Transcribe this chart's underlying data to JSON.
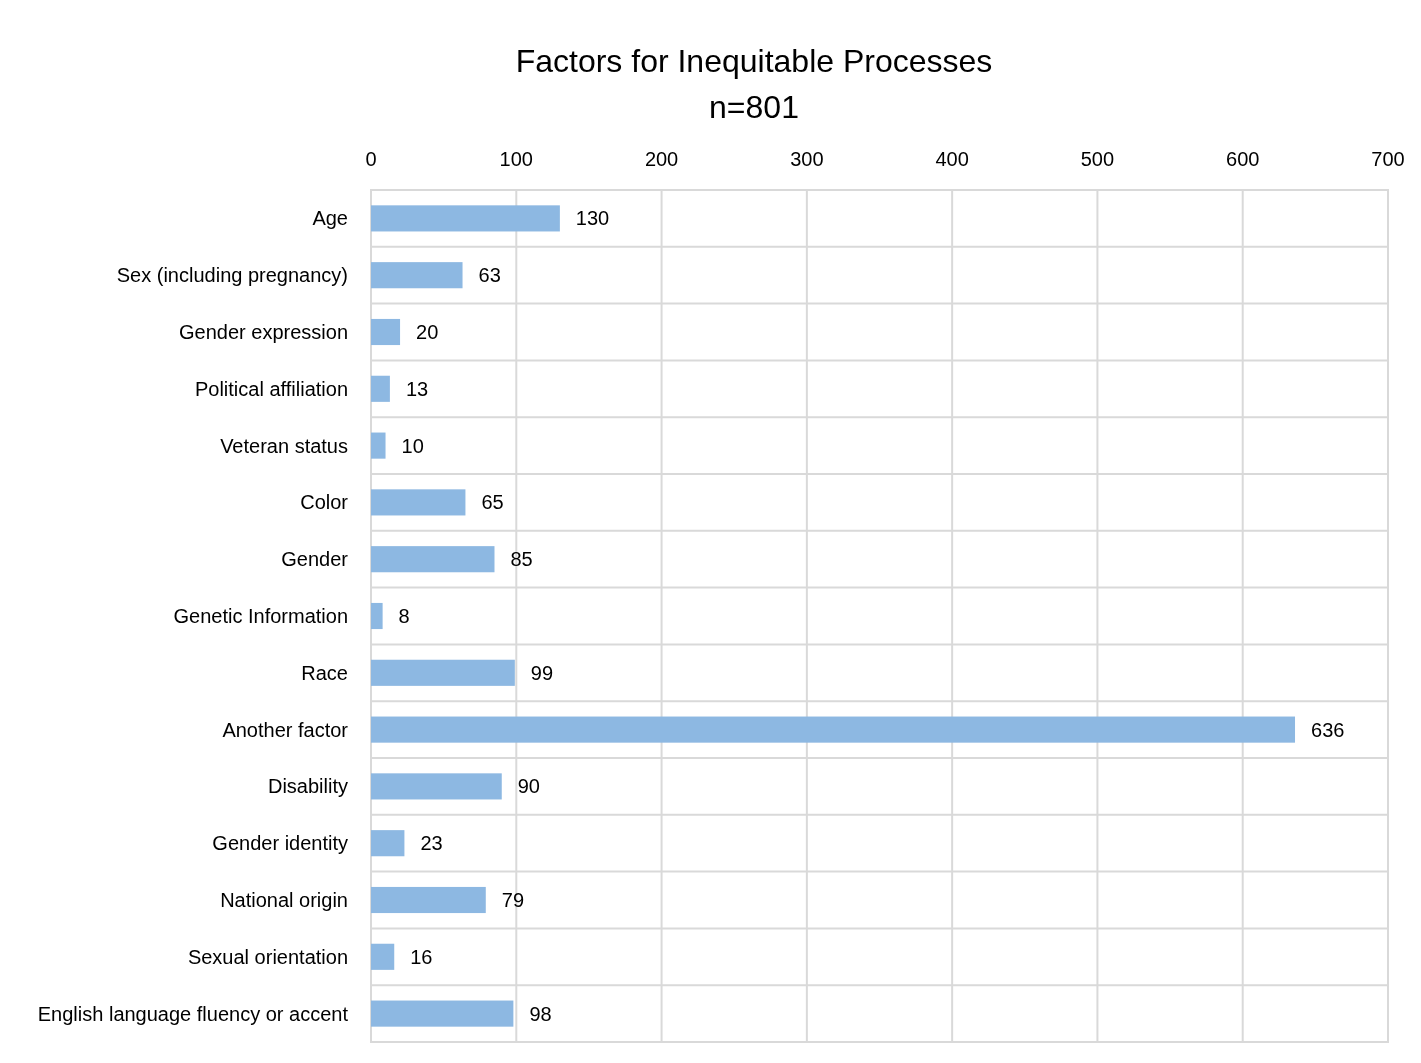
{
  "chart_data": {
    "type": "bar",
    "orientation": "horizontal",
    "title": "Factors for Inequitable Processes",
    "subtitle": "n=801",
    "categories": [
      "Age",
      "Sex (including pregnancy)",
      "Gender expression",
      "Political affiliation",
      "Veteran status",
      "Color",
      "Gender",
      "Genetic Information",
      "Race",
      "Another factor",
      "Disability",
      "Gender identity",
      "National origin",
      "Sexual orientation",
      "English language fluency or accent"
    ],
    "values": [
      130,
      63,
      20,
      13,
      10,
      65,
      85,
      8,
      99,
      636,
      90,
      23,
      79,
      16,
      98
    ],
    "color": "#8db8e2",
    "xlim": [
      0,
      700
    ],
    "xticks": [
      0,
      100,
      200,
      300,
      400,
      500,
      600,
      700
    ],
    "grid": true,
    "data_labels": true
  }
}
